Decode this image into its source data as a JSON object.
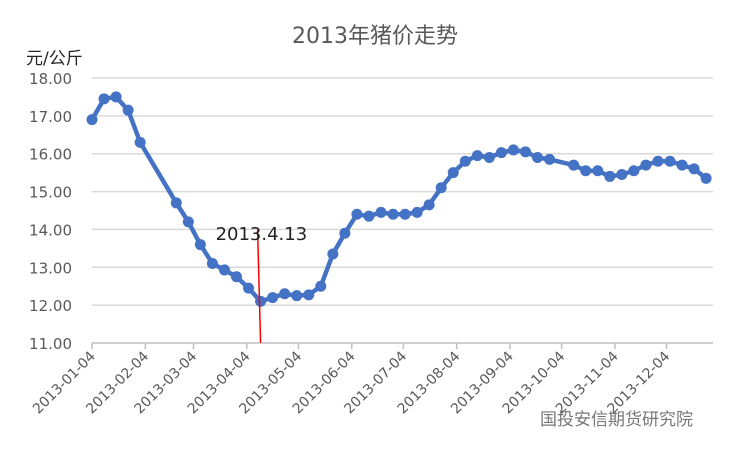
{
  "chart_data": {
    "type": "line",
    "title": "2013年猪价走势",
    "ylabel": "元/公斤",
    "ylim": [
      11,
      18
    ],
    "yticks": [
      "11.00",
      "12.00",
      "13.00",
      "14.00",
      "15.00",
      "16.00",
      "17.00",
      "18.00"
    ],
    "xlim": [
      "2013-01-04",
      "2013-12-31"
    ],
    "xticks": [
      "2013-01-04",
      "2013-02-04",
      "2013-03-04",
      "2013-04-04",
      "2013-05-04",
      "2013-06-04",
      "2013-07-04",
      "2013-08-04",
      "2013-09-04",
      "2013-10-04",
      "2013-11-04",
      "2013-12-04"
    ],
    "grid": true,
    "color": "#4472C4",
    "x": [
      "2013-01-04",
      "2013-01-11",
      "2013-01-18",
      "2013-01-25",
      "2013-02-01",
      "2013-02-22",
      "2013-03-01",
      "2013-03-08",
      "2013-03-15",
      "2013-03-22",
      "2013-03-29",
      "2013-04-05",
      "2013-04-12",
      "2013-04-19",
      "2013-04-26",
      "2013-05-03",
      "2013-05-10",
      "2013-05-17",
      "2013-05-24",
      "2013-05-31",
      "2013-06-07",
      "2013-06-14",
      "2013-06-21",
      "2013-06-28",
      "2013-07-05",
      "2013-07-12",
      "2013-07-19",
      "2013-07-26",
      "2013-08-02",
      "2013-08-09",
      "2013-08-16",
      "2013-08-23",
      "2013-08-30",
      "2013-09-06",
      "2013-09-13",
      "2013-09-20",
      "2013-09-27",
      "2013-10-11",
      "2013-10-18",
      "2013-10-25",
      "2013-11-01",
      "2013-11-08",
      "2013-11-15",
      "2013-11-22",
      "2013-11-29",
      "2013-12-06",
      "2013-12-13",
      "2013-12-20",
      "2013-12-27"
    ],
    "values": [
      16.9,
      17.45,
      17.5,
      17.15,
      16.3,
      14.7,
      14.2,
      13.6,
      13.1,
      12.93,
      12.75,
      12.45,
      12.1,
      12.2,
      12.3,
      12.25,
      12.27,
      12.5,
      13.35,
      13.9,
      14.4,
      14.35,
      14.45,
      14.4,
      14.4,
      14.45,
      14.65,
      15.1,
      15.5,
      15.8,
      15.95,
      15.9,
      16.03,
      16.1,
      16.05,
      15.9,
      15.85,
      15.7,
      15.55,
      15.55,
      15.4,
      15.45,
      15.55,
      15.7,
      15.8,
      15.8,
      15.7,
      15.6,
      15.35
    ],
    "annotation": {
      "label": "2013.4.13",
      "date": "2013-04-12",
      "color": "#FF0000"
    }
  },
  "watermark": "国投安信期货研究院"
}
